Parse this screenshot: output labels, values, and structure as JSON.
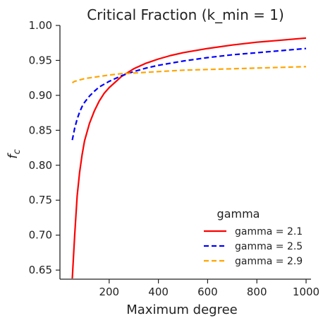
{
  "chart_data": {
    "type": "line",
    "title": "Critical Fraction (k_min = 1)",
    "xlabel": "Maximum degree",
    "ylabel": "f_c",
    "ylabel_main": "f",
    "ylabel_sub": "c",
    "xlim": [
      0,
      1020
    ],
    "ylim": [
      0.637,
      1.0
    ],
    "xticks": [
      200,
      400,
      600,
      800,
      1000
    ],
    "xtick_labels": [
      "200",
      "400",
      "600",
      "800",
      "1000"
    ],
    "yticks": [
      0.65,
      0.7,
      0.75,
      0.8,
      0.85,
      0.9,
      0.95,
      1.0
    ],
    "ytick_labels": [
      "0.65",
      "0.70",
      "0.75",
      "0.80",
      "0.85",
      "0.90",
      "0.95",
      "1.00"
    ],
    "grid": false,
    "legend": {
      "title": "gamma",
      "position": "lower-right"
    },
    "series": [
      {
        "name": "gamma = 2.1",
        "color": "#ff0000",
        "style": "solid",
        "x": [
          50,
          60,
          70,
          80,
          90,
          100,
          120,
          140,
          160,
          180,
          200,
          250,
          300,
          350,
          400,
          450,
          500,
          600,
          700,
          800,
          900,
          1000
        ],
        "y": [
          0.638,
          0.7,
          0.756,
          0.79,
          0.815,
          0.835,
          0.86,
          0.878,
          0.892,
          0.903,
          0.911,
          0.927,
          0.938,
          0.946,
          0.952,
          0.957,
          0.961,
          0.967,
          0.972,
          0.976,
          0.979,
          0.982
        ]
      },
      {
        "name": "gamma = 2.5",
        "color": "#0000ff",
        "style": "dashed",
        "x": [
          50,
          60,
          70,
          80,
          90,
          100,
          120,
          140,
          160,
          180,
          200,
          250,
          300,
          350,
          400,
          450,
          500,
          600,
          700,
          800,
          900,
          1000
        ],
        "y": [
          0.836,
          0.853,
          0.866,
          0.876,
          0.884,
          0.89,
          0.899,
          0.906,
          0.912,
          0.916,
          0.92,
          0.928,
          0.934,
          0.939,
          0.943,
          0.946,
          0.949,
          0.954,
          0.958,
          0.961,
          0.964,
          0.967
        ]
      },
      {
        "name": "gamma = 2.9",
        "color": "#ffa500",
        "style": "dashed",
        "x": [
          50,
          60,
          70,
          80,
          90,
          100,
          120,
          140,
          160,
          180,
          200,
          250,
          300,
          350,
          400,
          450,
          500,
          600,
          700,
          800,
          900,
          1000
        ],
        "y": [
          0.918,
          0.92,
          0.921,
          0.922,
          0.923,
          0.924,
          0.925,
          0.926,
          0.927,
          0.928,
          0.929,
          0.931,
          0.932,
          0.933,
          0.934,
          0.935,
          0.936,
          0.937,
          0.938,
          0.939,
          0.94,
          0.941
        ]
      }
    ]
  }
}
